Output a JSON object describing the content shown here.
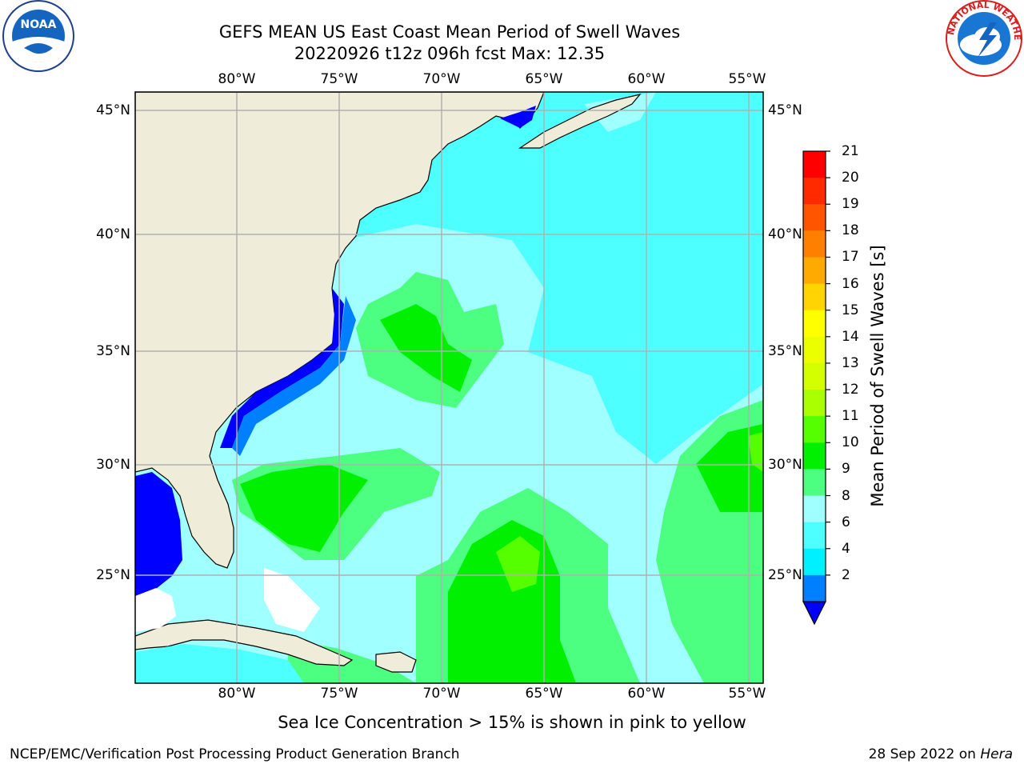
{
  "header": {
    "title_line1": "GEFS MEAN US East Coast Mean Period of Swell Waves",
    "title_line2": "20220926 t12z 096h fcst   Max: 12.35"
  },
  "map": {
    "lon_labels": [
      "80°W",
      "75°W",
      "70°W",
      "65°W",
      "60°W",
      "55°W"
    ],
    "lat_labels": [
      "45°N",
      "40°N",
      "35°N",
      "30°N",
      "25°N"
    ],
    "colors": {
      "land": "#efedda",
      "ocean_dominant": "#4dffff",
      "grid": "#b0b0b0"
    }
  },
  "colorbar": {
    "label": "Mean Period of Swell Waves [s]",
    "ticks": [
      "21",
      "20",
      "19",
      "18",
      "17",
      "16",
      "15",
      "14",
      "13",
      "12",
      "11",
      "10",
      "9",
      "8",
      "6",
      "4",
      "2"
    ],
    "colors": [
      "#ff0000",
      "#ff2a00",
      "#ff5500",
      "#ff7f00",
      "#ffaa00",
      "#ffd400",
      "#ffff00",
      "#ecff00",
      "#d4ff00",
      "#aaff00",
      "#55ff00",
      "#00f000",
      "#4dff80",
      "#a0ffff",
      "#4dffff",
      "#00f0ff",
      "#0080ff",
      "#0000ff"
    ]
  },
  "logos": {
    "noaa_text": "NOAA",
    "nws_text": "NATIONAL WEATHER SERVICE"
  },
  "footer": {
    "sea_ice_note": "Sea Ice Concentration > 15% is shown in pink to yellow",
    "credit_left": "NCEP/EMC/Verification Post Processing Product Generation Branch",
    "credit_date": "28 Sep 2022 on ",
    "credit_machine": "Hera"
  }
}
